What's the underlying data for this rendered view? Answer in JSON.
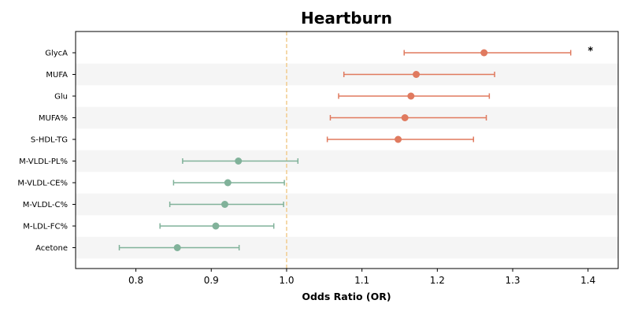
{
  "chart_data": {
    "type": "forest",
    "title": "Heartburn",
    "xlabel": "Odds Ratio (OR)",
    "ylabel": "",
    "xlim": [
      0.72,
      1.44
    ],
    "xticks": [
      0.8,
      0.9,
      1.0,
      1.1,
      1.2,
      1.3,
      1.4
    ],
    "xtick_labels": [
      "0.8",
      "0.9",
      "1.0",
      "1.1",
      "1.2",
      "1.3",
      "1.4"
    ],
    "reference_line": 1.0,
    "grid": false,
    "row_banding": true,
    "colors": {
      "increased": "#e07a5f",
      "decreased": "#81b29a",
      "reference": "#f2cc8f",
      "band": "#f5f5f5"
    },
    "rows": [
      {
        "label": "GlycA",
        "or": 1.262,
        "lower": 1.156,
        "upper": 1.377,
        "annotation": "*"
      },
      {
        "label": "MUFA",
        "or": 1.172,
        "lower": 1.076,
        "upper": 1.276,
        "annotation": ""
      },
      {
        "label": "Glu",
        "or": 1.165,
        "lower": 1.069,
        "upper": 1.269,
        "annotation": ""
      },
      {
        "label": "MUFA%",
        "or": 1.157,
        "lower": 1.058,
        "upper": 1.265,
        "annotation": ""
      },
      {
        "label": "S-HDL-TG",
        "or": 1.148,
        "lower": 1.054,
        "upper": 1.248,
        "annotation": ""
      },
      {
        "label": "M-VLDL-PL%",
        "or": 0.936,
        "lower": 0.862,
        "upper": 1.015,
        "annotation": ""
      },
      {
        "label": "M-VLDL-CE%",
        "or": 0.922,
        "lower": 0.85,
        "upper": 0.997,
        "annotation": ""
      },
      {
        "label": "M-VLDL-C%",
        "or": 0.918,
        "lower": 0.845,
        "upper": 0.996,
        "annotation": ""
      },
      {
        "label": "M-LDL-FC%",
        "or": 0.906,
        "lower": 0.832,
        "upper": 0.983,
        "annotation": ""
      },
      {
        "label": "Acetone",
        "or": 0.855,
        "lower": 0.778,
        "upper": 0.937,
        "annotation": ""
      }
    ]
  }
}
